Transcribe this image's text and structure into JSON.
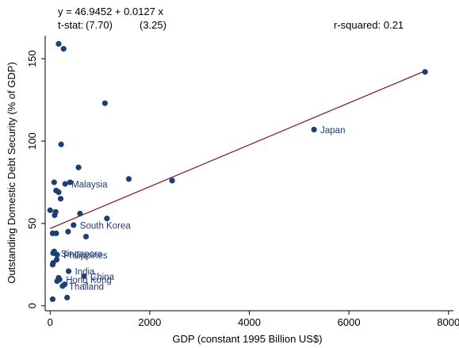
{
  "chart_data": {
    "type": "scatter",
    "title": "",
    "xlabel": "GDP (constant 1995 Billion US$)",
    "ylabel": "Outstanding Domestic Debt Security (% of GDP)",
    "xlim": [
      -100,
      8100
    ],
    "ylim": [
      -3,
      164
    ],
    "xticks": [
      0,
      2000,
      4000,
      6000,
      8000
    ],
    "yticks": [
      0,
      50,
      100,
      150
    ],
    "grid": false,
    "regression": {
      "equation": "y = 46.9452 + 0.0127 x",
      "tstat_label": "t-stat:",
      "tstat_intercept": "(7.70)",
      "tstat_slope": "(3.25)",
      "r_squared": "r-squared: 0.21",
      "intercept": 46.9452,
      "slope": 0.0127
    },
    "colors": {
      "points": "#1c3f75",
      "fit_line": "#8b2323",
      "labels": "#1f3a7a",
      "axes": "#000000"
    },
    "points": [
      {
        "x": 170,
        "y": 159
      },
      {
        "x": 270,
        "y": 156
      },
      {
        "x": 1100,
        "y": 123
      },
      {
        "x": 220,
        "y": 98
      },
      {
        "x": 7530,
        "y": 142
      },
      {
        "x": 5300,
        "y": 107,
        "label": "Japan"
      },
      {
        "x": 570,
        "y": 84
      },
      {
        "x": 1580,
        "y": 77
      },
      {
        "x": 2450,
        "y": 76
      },
      {
        "x": 80,
        "y": 75
      },
      {
        "x": 400,
        "y": 75
      },
      {
        "x": 300,
        "y": 74,
        "label": "Malaysia"
      },
      {
        "x": 120,
        "y": 70
      },
      {
        "x": 170,
        "y": 69
      },
      {
        "x": 210,
        "y": 65
      },
      {
        "x": 0,
        "y": 58
      },
      {
        "x": 110,
        "y": 57
      },
      {
        "x": 600,
        "y": 56
      },
      {
        "x": 90,
        "y": 55
      },
      {
        "x": 1140,
        "y": 53
      },
      {
        "x": 470,
        "y": 49,
        "label": "South Korea"
      },
      {
        "x": 50,
        "y": 44
      },
      {
        "x": 120,
        "y": 44
      },
      {
        "x": 360,
        "y": 45
      },
      {
        "x": 720,
        "y": 42
      },
      {
        "x": 60,
        "y": 32
      },
      {
        "x": 80,
        "y": 33
      },
      {
        "x": 90,
        "y": 32,
        "label": "Singapore"
      },
      {
        "x": 140,
        "y": 31,
        "label": "Philippines"
      },
      {
        "x": 50,
        "y": 25
      },
      {
        "x": 60,
        "y": 26
      },
      {
        "x": 130,
        "y": 28
      },
      {
        "x": 370,
        "y": 21,
        "label": "India"
      },
      {
        "x": 680,
        "y": 18,
        "label": "China"
      },
      {
        "x": 170,
        "y": 17
      },
      {
        "x": 140,
        "y": 15
      },
      {
        "x": 190,
        "y": 16,
        "label": "Hong Kong"
      },
      {
        "x": 290,
        "y": 13
      },
      {
        "x": 250,
        "y": 12,
        "label": "Thailand"
      },
      {
        "x": 50,
        "y": 4
      },
      {
        "x": 340,
        "y": 5
      }
    ]
  }
}
